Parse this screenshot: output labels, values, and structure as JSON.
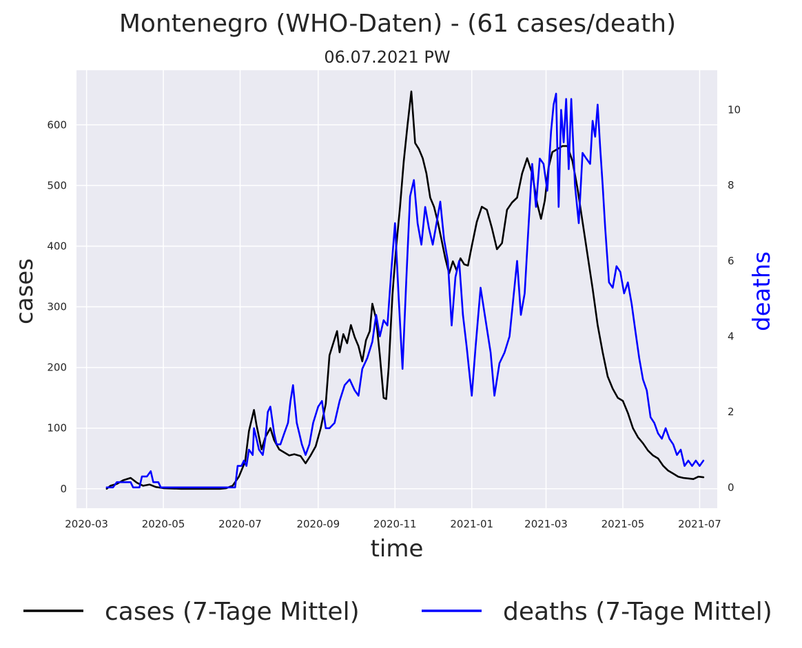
{
  "chart_data": {
    "type": "line",
    "title": "Montenegro (WHO-Daten) - (61 cases/death)",
    "subtitle": "06.07.2021 PW",
    "xlabel": "time",
    "ylabel_left": "cases",
    "ylabel_right": "deaths",
    "x_ticks": [
      "2020-03",
      "2020-05",
      "2020-07",
      "2020-09",
      "2020-11",
      "2021-01",
      "2021-03",
      "2021-05",
      "2021-07"
    ],
    "y_left_ticks": [
      0,
      100,
      200,
      300,
      400,
      500,
      600
    ],
    "y_right_ticks": [
      0,
      2,
      4,
      6,
      8,
      10
    ],
    "xlim": [
      "2020-02-22",
      "2021-07-15"
    ],
    "ylim_left": [
      -32,
      690
    ],
    "ylim_right": [
      -0.55,
      11.05
    ],
    "grid": true,
    "legend_position": "bottom",
    "series": [
      {
        "name": "cases (7-Tage Mittel)",
        "axis": "left",
        "color": "#000000",
        "points": [
          [
            "2020-03-17",
            0
          ],
          [
            "2020-03-20",
            5
          ],
          [
            "2020-03-25",
            8
          ],
          [
            "2020-03-30",
            14
          ],
          [
            "2020-04-05",
            18
          ],
          [
            "2020-04-10",
            10
          ],
          [
            "2020-04-15",
            5
          ],
          [
            "2020-04-20",
            7
          ],
          [
            "2020-04-25",
            3
          ],
          [
            "2020-05-01",
            1
          ],
          [
            "2020-05-15",
            0
          ],
          [
            "2020-06-01",
            0
          ],
          [
            "2020-06-15",
            0
          ],
          [
            "2020-06-20",
            1
          ],
          [
            "2020-06-25",
            5
          ],
          [
            "2020-06-30",
            20
          ],
          [
            "2020-07-05",
            45
          ],
          [
            "2020-07-08",
            95
          ],
          [
            "2020-07-12",
            130
          ],
          [
            "2020-07-14",
            105
          ],
          [
            "2020-07-18",
            65
          ],
          [
            "2020-07-21",
            85
          ],
          [
            "2020-07-25",
            100
          ],
          [
            "2020-07-28",
            80
          ],
          [
            "2020-08-01",
            65
          ],
          [
            "2020-08-05",
            60
          ],
          [
            "2020-08-09",
            55
          ],
          [
            "2020-08-13",
            57
          ],
          [
            "2020-08-18",
            54
          ],
          [
            "2020-08-22",
            42
          ],
          [
            "2020-08-26",
            55
          ],
          [
            "2020-08-30",
            70
          ],
          [
            "2020-09-03",
            100
          ],
          [
            "2020-09-07",
            140
          ],
          [
            "2020-09-10",
            220
          ],
          [
            "2020-09-13",
            240
          ],
          [
            "2020-09-16",
            260
          ],
          [
            "2020-09-18",
            225
          ],
          [
            "2020-09-21",
            255
          ],
          [
            "2020-09-24",
            240
          ],
          [
            "2020-09-27",
            270
          ],
          [
            "2020-09-30",
            250
          ],
          [
            "2020-10-03",
            235
          ],
          [
            "2020-10-06",
            210
          ],
          [
            "2020-10-09",
            245
          ],
          [
            "2020-10-12",
            260
          ],
          [
            "2020-10-14",
            305
          ],
          [
            "2020-10-17",
            280
          ],
          [
            "2020-10-20",
            220
          ],
          [
            "2020-10-23",
            150
          ],
          [
            "2020-10-25",
            148
          ],
          [
            "2020-10-27",
            200
          ],
          [
            "2020-10-30",
            320
          ],
          [
            "2020-11-02",
            400
          ],
          [
            "2020-11-05",
            465
          ],
          [
            "2020-11-08",
            540
          ],
          [
            "2020-11-11",
            600
          ],
          [
            "2020-11-14",
            655
          ],
          [
            "2020-11-17",
            570
          ],
          [
            "2020-11-20",
            560
          ],
          [
            "2020-11-23",
            545
          ],
          [
            "2020-11-26",
            520
          ],
          [
            "2020-11-29",
            480
          ],
          [
            "2020-12-02",
            465
          ],
          [
            "2020-12-05",
            440
          ],
          [
            "2020-12-08",
            410
          ],
          [
            "2020-12-11",
            380
          ],
          [
            "2020-12-14",
            355
          ],
          [
            "2020-12-17",
            375
          ],
          [
            "2020-12-20",
            360
          ],
          [
            "2020-12-23",
            380
          ],
          [
            "2020-12-26",
            370
          ],
          [
            "2020-12-29",
            368
          ],
          [
            "2021-01-01",
            400
          ],
          [
            "2021-01-05",
            440
          ],
          [
            "2021-01-09",
            465
          ],
          [
            "2021-01-13",
            460
          ],
          [
            "2021-01-17",
            430
          ],
          [
            "2021-01-21",
            395
          ],
          [
            "2021-01-25",
            405
          ],
          [
            "2021-01-29",
            460
          ],
          [
            "2021-02-02",
            472
          ],
          [
            "2021-02-06",
            480
          ],
          [
            "2021-02-10",
            520
          ],
          [
            "2021-02-14",
            545
          ],
          [
            "2021-02-18",
            520
          ],
          [
            "2021-02-22",
            470
          ],
          [
            "2021-02-25",
            445
          ],
          [
            "2021-02-28",
            475
          ],
          [
            "2021-03-03",
            530
          ],
          [
            "2021-03-06",
            555
          ],
          [
            "2021-03-10",
            560
          ],
          [
            "2021-03-14",
            565
          ],
          [
            "2021-03-18",
            565
          ],
          [
            "2021-03-22",
            540
          ],
          [
            "2021-03-26",
            495
          ],
          [
            "2021-03-30",
            440
          ],
          [
            "2021-04-03",
            385
          ],
          [
            "2021-04-07",
            330
          ],
          [
            "2021-04-11",
            270
          ],
          [
            "2021-04-15",
            225
          ],
          [
            "2021-04-19",
            185
          ],
          [
            "2021-04-23",
            165
          ],
          [
            "2021-04-27",
            150
          ],
          [
            "2021-05-01",
            145
          ],
          [
            "2021-05-05",
            125
          ],
          [
            "2021-05-09",
            100
          ],
          [
            "2021-05-13",
            85
          ],
          [
            "2021-05-17",
            75
          ],
          [
            "2021-05-21",
            63
          ],
          [
            "2021-05-25",
            55
          ],
          [
            "2021-05-29",
            50
          ],
          [
            "2021-06-02",
            38
          ],
          [
            "2021-06-06",
            30
          ],
          [
            "2021-06-10",
            25
          ],
          [
            "2021-06-14",
            20
          ],
          [
            "2021-06-18",
            18
          ],
          [
            "2021-06-22",
            17
          ],
          [
            "2021-06-26",
            16
          ],
          [
            "2021-06-30",
            20
          ],
          [
            "2021-07-04",
            19
          ]
        ]
      },
      {
        "name": "deaths (7-Tage Mittel)",
        "axis": "right",
        "color": "#0000ff",
        "points": [
          [
            "2020-03-17",
            0
          ],
          [
            "2020-03-22",
            0
          ],
          [
            "2020-03-25",
            0.14
          ],
          [
            "2020-03-30",
            0.14
          ],
          [
            "2020-04-05",
            0.14
          ],
          [
            "2020-04-07",
            0
          ],
          [
            "2020-04-12",
            0
          ],
          [
            "2020-04-14",
            0.29
          ],
          [
            "2020-04-18",
            0.29
          ],
          [
            "2020-04-21",
            0.43
          ],
          [
            "2020-04-23",
            0.14
          ],
          [
            "2020-04-27",
            0.14
          ],
          [
            "2020-04-29",
            0
          ],
          [
            "2020-05-15",
            0
          ],
          [
            "2020-06-01",
            0
          ],
          [
            "2020-06-15",
            0
          ],
          [
            "2020-06-25",
            0
          ],
          [
            "2020-06-27",
            0
          ],
          [
            "2020-06-29",
            0.57
          ],
          [
            "2020-07-02",
            0.57
          ],
          [
            "2020-07-04",
            0.71
          ],
          [
            "2020-07-06",
            0.57
          ],
          [
            "2020-07-08",
            1.0
          ],
          [
            "2020-07-11",
            0.86
          ],
          [
            "2020-07-12",
            1.57
          ],
          [
            "2020-07-14",
            1.29
          ],
          [
            "2020-07-16",
            1.0
          ],
          [
            "2020-07-19",
            0.86
          ],
          [
            "2020-07-21",
            1.29
          ],
          [
            "2020-07-23",
            2.0
          ],
          [
            "2020-07-25",
            2.14
          ],
          [
            "2020-07-28",
            1.43
          ],
          [
            "2020-07-30",
            1.14
          ],
          [
            "2020-08-02",
            1.14
          ],
          [
            "2020-08-05",
            1.43
          ],
          [
            "2020-08-08",
            1.71
          ],
          [
            "2020-08-10",
            2.29
          ],
          [
            "2020-08-12",
            2.71
          ],
          [
            "2020-08-15",
            1.71
          ],
          [
            "2020-08-17",
            1.43
          ],
          [
            "2020-08-19",
            1.14
          ],
          [
            "2020-08-22",
            0.86
          ],
          [
            "2020-08-25",
            1.14
          ],
          [
            "2020-08-28",
            1.71
          ],
          [
            "2020-09-01",
            2.14
          ],
          [
            "2020-09-04",
            2.29
          ],
          [
            "2020-09-07",
            1.57
          ],
          [
            "2020-09-10",
            1.57
          ],
          [
            "2020-09-14",
            1.71
          ],
          [
            "2020-09-18",
            2.29
          ],
          [
            "2020-09-22",
            2.71
          ],
          [
            "2020-09-26",
            2.86
          ],
          [
            "2020-09-30",
            2.57
          ],
          [
            "2020-10-03",
            2.43
          ],
          [
            "2020-10-06",
            3.14
          ],
          [
            "2020-10-10",
            3.43
          ],
          [
            "2020-10-14",
            3.86
          ],
          [
            "2020-10-17",
            4.57
          ],
          [
            "2020-10-20",
            4.0
          ],
          [
            "2020-10-23",
            4.43
          ],
          [
            "2020-10-26",
            4.29
          ],
          [
            "2020-10-29",
            5.71
          ],
          [
            "2020-11-01",
            7.0
          ],
          [
            "2020-11-04",
            5.0
          ],
          [
            "2020-11-07",
            3.14
          ],
          [
            "2020-11-10",
            5.5
          ],
          [
            "2020-11-13",
            7.71
          ],
          [
            "2020-11-16",
            8.14
          ],
          [
            "2020-11-19",
            7.0
          ],
          [
            "2020-11-22",
            6.43
          ],
          [
            "2020-11-25",
            7.43
          ],
          [
            "2020-11-28",
            6.86
          ],
          [
            "2020-12-01",
            6.43
          ],
          [
            "2020-12-04",
            7.0
          ],
          [
            "2020-12-07",
            7.57
          ],
          [
            "2020-12-10",
            6.57
          ],
          [
            "2020-12-13",
            6.0
          ],
          [
            "2020-12-16",
            4.29
          ],
          [
            "2020-12-19",
            5.57
          ],
          [
            "2020-12-22",
            6.0
          ],
          [
            "2020-12-25",
            4.57
          ],
          [
            "2020-12-28",
            3.71
          ],
          [
            "2021-01-01",
            2.43
          ],
          [
            "2021-01-04",
            3.71
          ],
          [
            "2021-01-08",
            5.29
          ],
          [
            "2021-01-12",
            4.43
          ],
          [
            "2021-01-16",
            3.57
          ],
          [
            "2021-01-19",
            2.43
          ],
          [
            "2021-01-23",
            3.29
          ],
          [
            "2021-01-27",
            3.57
          ],
          [
            "2021-01-31",
            4.0
          ],
          [
            "2021-02-03",
            5.0
          ],
          [
            "2021-02-06",
            6.0
          ],
          [
            "2021-02-09",
            4.57
          ],
          [
            "2021-02-12",
            5.14
          ],
          [
            "2021-02-15",
            6.86
          ],
          [
            "2021-02-18",
            8.57
          ],
          [
            "2021-02-21",
            7.43
          ],
          [
            "2021-02-24",
            8.71
          ],
          [
            "2021-02-27",
            8.57
          ],
          [
            "2021-03-02",
            7.86
          ],
          [
            "2021-03-05",
            9.43
          ],
          [
            "2021-03-07",
            10.14
          ],
          [
            "2021-03-09",
            10.43
          ],
          [
            "2021-03-11",
            7.43
          ],
          [
            "2021-03-13",
            10.0
          ],
          [
            "2021-03-15",
            9.14
          ],
          [
            "2021-03-17",
            10.29
          ],
          [
            "2021-03-19",
            8.43
          ],
          [
            "2021-03-21",
            10.29
          ],
          [
            "2021-03-24",
            8.0
          ],
          [
            "2021-03-27",
            7.0
          ],
          [
            "2021-03-30",
            8.86
          ],
          [
            "2021-04-02",
            8.71
          ],
          [
            "2021-04-05",
            8.57
          ],
          [
            "2021-04-07",
            9.71
          ],
          [
            "2021-04-09",
            9.29
          ],
          [
            "2021-04-11",
            10.14
          ],
          [
            "2021-04-13",
            9.0
          ],
          [
            "2021-04-15",
            8.0
          ],
          [
            "2021-04-17",
            6.86
          ],
          [
            "2021-04-20",
            5.43
          ],
          [
            "2021-04-23",
            5.29
          ],
          [
            "2021-04-26",
            5.86
          ],
          [
            "2021-04-29",
            5.71
          ],
          [
            "2021-05-02",
            5.14
          ],
          [
            "2021-05-05",
            5.43
          ],
          [
            "2021-05-08",
            4.86
          ],
          [
            "2021-05-11",
            4.14
          ],
          [
            "2021-05-14",
            3.43
          ],
          [
            "2021-05-17",
            2.86
          ],
          [
            "2021-05-20",
            2.57
          ],
          [
            "2021-05-23",
            1.86
          ],
          [
            "2021-05-26",
            1.71
          ],
          [
            "2021-05-29",
            1.43
          ],
          [
            "2021-06-01",
            1.29
          ],
          [
            "2021-06-04",
            1.57
          ],
          [
            "2021-06-07",
            1.29
          ],
          [
            "2021-06-10",
            1.14
          ],
          [
            "2021-06-13",
            0.86
          ],
          [
            "2021-06-16",
            1.0
          ],
          [
            "2021-06-19",
            0.57
          ],
          [
            "2021-06-22",
            0.71
          ],
          [
            "2021-06-25",
            0.57
          ],
          [
            "2021-06-28",
            0.71
          ],
          [
            "2021-07-01",
            0.57
          ],
          [
            "2021-07-04",
            0.71
          ]
        ]
      }
    ]
  }
}
